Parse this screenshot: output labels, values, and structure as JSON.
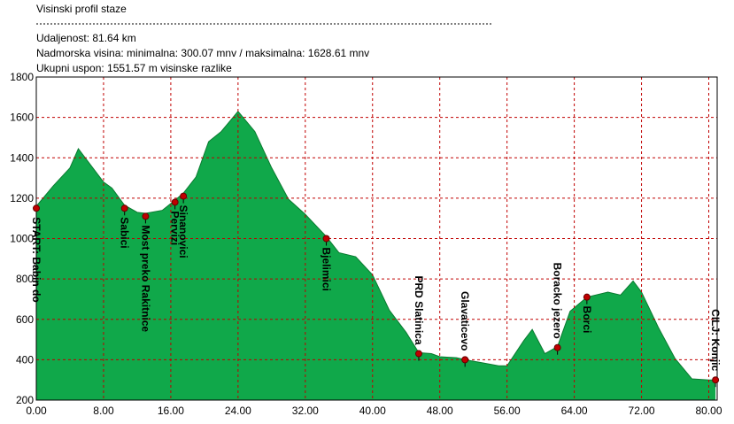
{
  "header": {
    "title": "Visinski profil staze",
    "lines": [
      "Udaljenost: 81.64 km",
      "Nadmorska visina:  minimalna: 300.07 mnv   /  maksimalna: 1628.61 mnv",
      "Ukupni uspon: 1551.57 m visinske razlike"
    ]
  },
  "chart_data": {
    "type": "area",
    "color": "#10a84a",
    "line_color": "#0a7a30",
    "grid": true,
    "grid_color": "#c00000",
    "x": [
      0,
      2,
      4,
      5,
      6,
      8,
      9,
      10.5,
      12,
      13,
      15,
      16.5,
      17.5,
      19,
      20.5,
      22,
      24,
      26,
      28,
      30,
      32,
      34.5,
      36,
      38,
      40,
      42,
      44,
      45.5,
      47,
      48,
      50,
      51,
      53,
      55,
      56,
      58,
      59,
      60.5,
      62,
      63.5,
      65.5,
      68,
      69.5,
      71,
      72,
      74,
      76,
      78,
      80,
      80.8
    ],
    "values": [
      1160,
      1260,
      1350,
      1445,
      1390,
      1280,
      1250,
      1165,
      1130,
      1125,
      1140,
      1190,
      1225,
      1305,
      1480,
      1530,
      1630,
      1530,
      1350,
      1195,
      1120,
      1010,
      930,
      910,
      820,
      645,
      535,
      435,
      430,
      415,
      410,
      400,
      385,
      370,
      370,
      495,
      550,
      430,
      465,
      640,
      710,
      735,
      720,
      790,
      735,
      560,
      405,
      305,
      300,
      300
    ],
    "waypoints": {
      "color": "#c00000",
      "names": [
        "START: Babin do",
        "Sabici",
        "Most preko Rakitnice",
        "Pervizi",
        "Sinanovici",
        "Bjelimici",
        "PRD Slatinica",
        "Glavaticevo",
        "Boracko jezero",
        "Borci",
        "CILJ: Konjic"
      ],
      "x": [
        0,
        10.5,
        13,
        16.5,
        17.5,
        34.5,
        45.5,
        51,
        62,
        65.5,
        80.8
      ],
      "values": [
        1150,
        1150,
        1110,
        1180,
        1210,
        1000,
        430,
        400,
        460,
        710,
        300
      ]
    },
    "xlim": [
      0,
      81
    ],
    "ylim": [
      200,
      1800
    ],
    "xticks": [
      {
        "value": 0,
        "label": "0.00"
      },
      {
        "value": 8,
        "label": "8.00"
      },
      {
        "value": 16,
        "label": "16.00"
      },
      {
        "value": 24,
        "label": "24.00"
      },
      {
        "value": 32,
        "label": "32.00"
      },
      {
        "value": 40,
        "label": "40.00"
      },
      {
        "value": 48,
        "label": "48.00"
      },
      {
        "value": 56,
        "label": "56.00"
      },
      {
        "value": 64,
        "label": "64.00"
      },
      {
        "value": 72,
        "label": "72.00"
      },
      {
        "value": 80,
        "label": "80.00"
      }
    ],
    "yticks": [
      200,
      400,
      600,
      800,
      1000,
      1200,
      1400,
      1600,
      1800
    ]
  }
}
